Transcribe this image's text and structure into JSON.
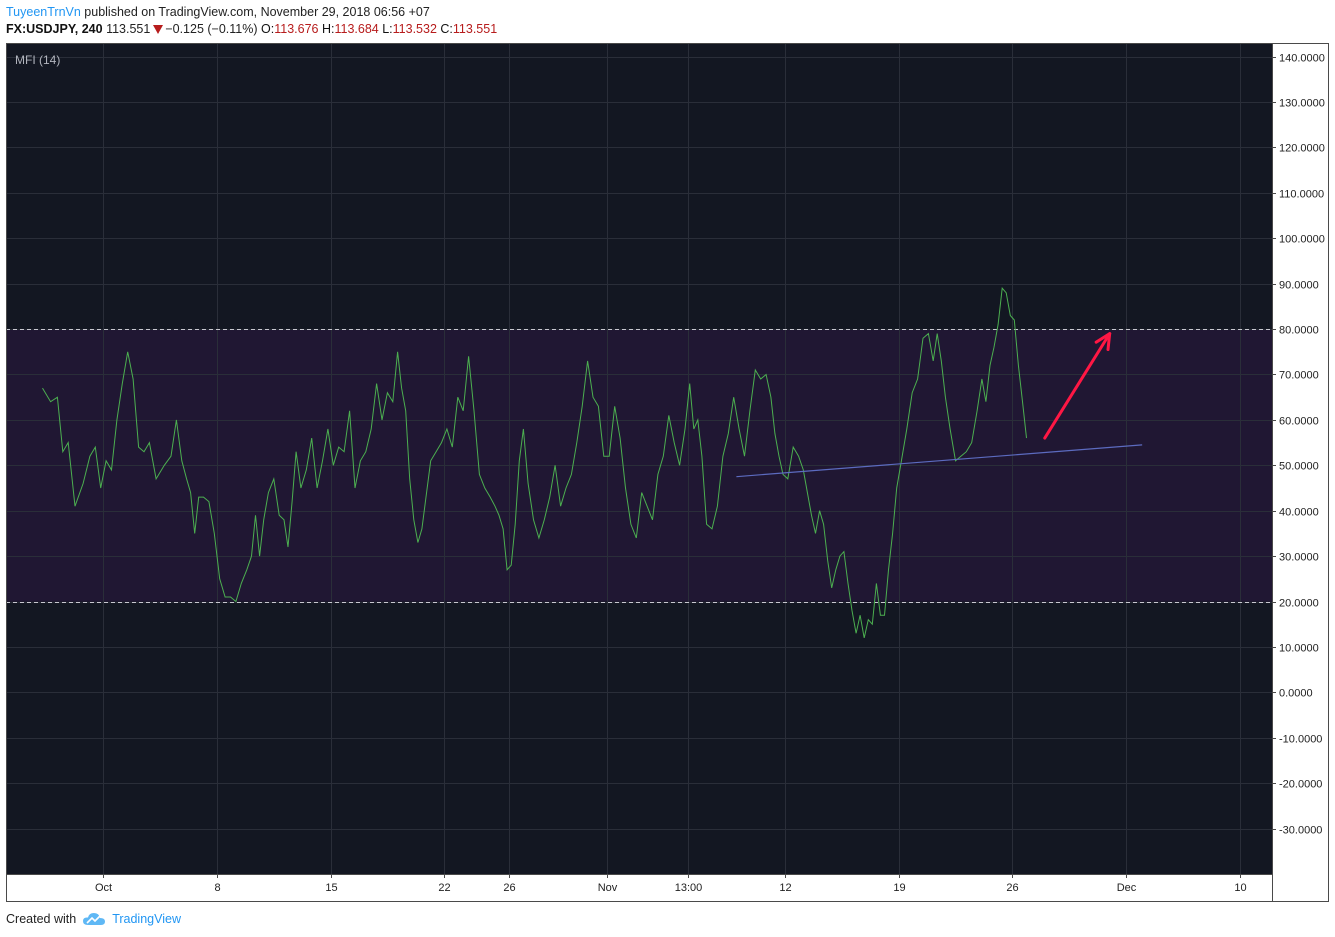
{
  "header": {
    "author": "TuyeenTrnVn",
    "published": "published on TradingView.com, November 29, 2018 06:56 +07",
    "symbol": "FX:USDJPY, 240",
    "price": "113.551",
    "change": "−0.125 (−0.11%)",
    "o_label": "O:",
    "o_value": "113.676",
    "h_label": "H:",
    "h_value": "113.684",
    "l_label": "L:",
    "l_value": "113.532",
    "c_label": "C:",
    "c_value": "113.551"
  },
  "footer": {
    "created_with": "Created with",
    "brand": "TradingView"
  },
  "colors": {
    "background": "#131722",
    "band": "#201733",
    "mfi_line": "#4caf50",
    "trend_line": "#5c6bc0",
    "arrow": "#ff1744",
    "level_lines": "#c8c8d0",
    "price_down": "#b71c1c",
    "brand": "#2196f3"
  },
  "chart_data": {
    "type": "line",
    "indicator_label": "MFI (14)",
    "ylim": [
      -40,
      143
    ],
    "yticks": [
      "140.0000",
      "130.0000",
      "120.0000",
      "110.0000",
      "100.0000",
      "90.0000",
      "80.0000",
      "70.0000",
      "60.0000",
      "50.0000",
      "40.0000",
      "30.0000",
      "20.0000",
      "10.0000",
      "0.0000",
      "-10.0000",
      "-20.0000",
      "-30.0000"
    ],
    "band": [
      20,
      80
    ],
    "x_range": [
      "2018-09-25",
      "2018-12-12"
    ],
    "xticks": [
      {
        "date": "2018-10-01",
        "label": "Oct"
      },
      {
        "date": "2018-10-08",
        "label": "8"
      },
      {
        "date": "2018-10-15",
        "label": "15"
      },
      {
        "date": "2018-10-22",
        "label": "22"
      },
      {
        "date": "2018-10-26",
        "label": "26"
      },
      {
        "date": "2018-11-01",
        "label": "Nov"
      },
      {
        "date": "2018-11-06",
        "label": "13:00"
      },
      {
        "date": "2018-11-12",
        "label": "12"
      },
      {
        "date": "2018-11-19",
        "label": "19"
      },
      {
        "date": "2018-11-26",
        "label": "26"
      },
      {
        "date": "2018-12-03",
        "label": "Dec"
      },
      {
        "date": "2018-12-10",
        "label": "10"
      }
    ],
    "series": [
      {
        "values": [
          [
            "2018-09-27",
            67
          ],
          [
            "2018-09-27",
            64
          ],
          [
            "2018-09-28",
            65
          ],
          [
            "2018-09-28",
            53
          ],
          [
            "2018-09-28",
            55
          ],
          [
            "2018-09-29",
            41
          ],
          [
            "2018-09-29",
            46
          ],
          [
            "2018-09-30",
            52
          ],
          [
            "2018-09-30",
            54
          ],
          [
            "2018-09-30",
            45
          ],
          [
            "2018-10-01",
            51
          ],
          [
            "2018-10-01",
            49
          ],
          [
            "2018-10-01",
            60
          ],
          [
            "2018-10-02",
            68
          ],
          [
            "2018-10-02",
            75
          ],
          [
            "2018-10-02",
            69
          ],
          [
            "2018-10-03",
            54
          ],
          [
            "2018-10-03",
            53
          ],
          [
            "2018-10-03",
            55
          ],
          [
            "2018-10-04",
            47
          ],
          [
            "2018-10-04",
            50
          ],
          [
            "2018-10-05",
            52
          ],
          [
            "2018-10-05",
            60
          ],
          [
            "2018-10-05",
            51
          ],
          [
            "2018-10-06",
            47
          ],
          [
            "2018-10-06",
            44
          ],
          [
            "2018-10-06",
            35
          ],
          [
            "2018-10-06",
            43
          ],
          [
            "2018-10-07",
            43
          ],
          [
            "2018-10-07",
            42
          ],
          [
            "2018-10-07",
            35
          ],
          [
            "2018-10-08",
            25
          ],
          [
            "2018-10-08",
            21
          ],
          [
            "2018-10-08",
            21
          ],
          [
            "2018-10-09",
            20
          ],
          [
            "2018-10-09",
            24
          ],
          [
            "2018-10-09",
            27
          ],
          [
            "2018-10-10",
            30
          ],
          [
            "2018-10-10",
            39
          ],
          [
            "2018-10-10",
            30
          ],
          [
            "2018-10-10",
            38
          ],
          [
            "2018-10-11",
            44
          ],
          [
            "2018-10-11",
            47
          ],
          [
            "2018-10-11",
            39
          ],
          [
            "2018-10-12",
            38
          ],
          [
            "2018-10-12",
            32
          ],
          [
            "2018-10-12",
            42
          ],
          [
            "2018-10-12",
            53
          ],
          [
            "2018-10-13",
            45
          ],
          [
            "2018-10-13",
            49
          ],
          [
            "2018-10-13",
            56
          ],
          [
            "2018-10-14",
            45
          ],
          [
            "2018-10-14",
            51
          ],
          [
            "2018-10-14",
            58
          ],
          [
            "2018-10-15",
            50
          ],
          [
            "2018-10-15",
            54
          ],
          [
            "2018-10-15",
            53
          ],
          [
            "2018-10-16",
            62
          ],
          [
            "2018-10-16",
            45
          ],
          [
            "2018-10-16",
            51
          ],
          [
            "2018-10-17",
            53
          ],
          [
            "2018-10-17",
            58
          ],
          [
            "2018-10-17",
            68
          ],
          [
            "2018-10-18",
            60
          ],
          [
            "2018-10-18",
            66
          ],
          [
            "2018-10-18",
            64
          ],
          [
            "2018-10-19",
            75
          ],
          [
            "2018-10-19",
            67
          ],
          [
            "2018-10-19",
            62
          ],
          [
            "2018-10-19",
            47
          ],
          [
            "2018-10-20",
            38
          ],
          [
            "2018-10-20",
            33
          ],
          [
            "2018-10-20",
            36
          ],
          [
            "2018-10-20",
            43
          ],
          [
            "2018-10-21",
            51
          ],
          [
            "2018-10-21",
            53
          ],
          [
            "2018-10-21",
            55
          ],
          [
            "2018-10-22",
            58
          ],
          [
            "2018-10-22",
            54
          ],
          [
            "2018-10-22",
            65
          ],
          [
            "2018-10-23",
            62
          ],
          [
            "2018-10-23",
            74
          ],
          [
            "2018-10-23",
            62
          ],
          [
            "2018-10-24",
            48
          ],
          [
            "2018-10-24",
            45
          ],
          [
            "2018-10-24",
            43
          ],
          [
            "2018-10-25",
            41
          ],
          [
            "2018-10-25",
            39
          ],
          [
            "2018-10-25",
            36
          ],
          [
            "2018-10-25",
            27
          ],
          [
            "2018-10-26",
            28
          ],
          [
            "2018-10-26",
            37
          ],
          [
            "2018-10-26",
            51
          ],
          [
            "2018-10-26",
            58
          ],
          [
            "2018-10-27",
            46
          ],
          [
            "2018-10-27",
            38
          ],
          [
            "2018-10-27",
            34
          ],
          [
            "2018-10-28",
            38
          ],
          [
            "2018-10-28",
            43
          ],
          [
            "2018-10-28",
            50
          ],
          [
            "2018-10-29",
            41
          ],
          [
            "2018-10-29",
            45
          ],
          [
            "2018-10-29",
            48
          ],
          [
            "2018-10-30",
            55
          ],
          [
            "2018-10-30",
            63
          ],
          [
            "2018-10-30",
            73
          ],
          [
            "2018-10-31",
            65
          ],
          [
            "2018-10-31",
            63
          ],
          [
            "2018-10-31",
            52
          ],
          [
            "2018-11-01",
            52
          ],
          [
            "2018-11-01",
            63
          ],
          [
            "2018-11-01",
            56
          ],
          [
            "2018-11-02",
            45
          ],
          [
            "2018-11-02",
            37
          ],
          [
            "2018-11-02",
            34
          ],
          [
            "2018-11-03",
            44
          ],
          [
            "2018-11-03",
            41
          ],
          [
            "2018-11-03",
            38
          ],
          [
            "2018-11-04",
            48
          ],
          [
            "2018-11-04",
            52
          ],
          [
            "2018-11-04",
            61
          ],
          [
            "2018-11-05",
            55
          ],
          [
            "2018-11-05",
            50
          ],
          [
            "2018-11-05",
            58
          ],
          [
            "2018-11-06",
            68
          ],
          [
            "2018-11-06",
            58
          ],
          [
            "2018-11-06",
            60
          ],
          [
            "2018-11-06",
            52
          ],
          [
            "2018-11-07",
            37
          ],
          [
            "2018-11-07",
            36
          ],
          [
            "2018-11-07",
            41
          ],
          [
            "2018-11-08",
            52
          ],
          [
            "2018-11-08",
            57
          ],
          [
            "2018-11-08",
            65
          ],
          [
            "2018-11-09",
            58
          ],
          [
            "2018-11-09",
            52
          ],
          [
            "2018-11-09",
            62
          ],
          [
            "2018-11-10",
            71
          ],
          [
            "2018-11-10",
            69
          ],
          [
            "2018-11-10",
            70
          ],
          [
            "2018-11-11",
            65
          ],
          [
            "2018-11-11",
            57
          ],
          [
            "2018-11-11",
            52
          ],
          [
            "2018-11-11",
            48
          ],
          [
            "2018-11-12",
            47
          ],
          [
            "2018-11-12",
            54
          ],
          [
            "2018-11-12",
            52
          ],
          [
            "2018-11-13",
            49
          ],
          [
            "2018-11-13",
            44
          ],
          [
            "2018-11-13",
            39
          ],
          [
            "2018-11-13",
            35
          ],
          [
            "2018-11-14",
            40
          ],
          [
            "2018-11-14",
            37
          ],
          [
            "2018-11-14",
            29
          ],
          [
            "2018-11-14",
            23
          ],
          [
            "2018-11-15",
            27
          ],
          [
            "2018-11-15",
            30
          ],
          [
            "2018-11-15",
            31
          ],
          [
            "2018-11-15",
            24
          ],
          [
            "2018-11-16",
            18
          ],
          [
            "2018-11-16",
            13
          ],
          [
            "2018-11-16",
            17
          ],
          [
            "2018-11-16",
            12
          ],
          [
            "2018-11-17",
            16
          ],
          [
            "2018-11-17",
            15
          ],
          [
            "2018-11-17",
            24
          ],
          [
            "2018-11-17",
            17
          ],
          [
            "2018-11-18",
            17
          ],
          [
            "2018-11-18",
            27
          ],
          [
            "2018-11-18",
            35
          ],
          [
            "2018-11-18",
            45
          ],
          [
            "2018-11-19",
            51
          ],
          [
            "2018-11-19",
            58
          ],
          [
            "2018-11-19",
            66
          ],
          [
            "2018-11-20",
            69
          ],
          [
            "2018-11-20",
            78
          ],
          [
            "2018-11-20",
            79
          ],
          [
            "2018-11-21",
            73
          ],
          [
            "2018-11-21",
            79
          ],
          [
            "2018-11-21",
            73
          ],
          [
            "2018-11-21",
            65
          ],
          [
            "2018-11-22",
            58
          ],
          [
            "2018-11-22",
            51
          ],
          [
            "2018-11-22",
            52
          ],
          [
            "2018-11-23",
            53
          ],
          [
            "2018-11-23",
            55
          ],
          [
            "2018-11-23",
            62
          ],
          [
            "2018-11-24",
            69
          ],
          [
            "2018-11-24",
            64
          ],
          [
            "2018-11-24",
            72
          ],
          [
            "2018-11-24",
            76
          ],
          [
            "2018-11-25",
            81
          ],
          [
            "2018-11-25",
            89
          ],
          [
            "2018-11-25",
            88
          ],
          [
            "2018-11-25",
            83
          ],
          [
            "2018-11-26",
            82
          ],
          [
            "2018-11-26",
            72
          ],
          [
            "2018-11-26",
            64
          ],
          [
            "2018-11-26",
            56
          ]
        ]
      }
    ],
    "trend_line": [
      [
        "2018-11-09",
        47.5
      ],
      [
        "2018-12-04",
        54.5
      ]
    ],
    "arrow": {
      "from": [
        "2018-11-28",
        56
      ],
      "to": [
        "2018-12-02",
        79
      ]
    },
    "notes": ""
  }
}
